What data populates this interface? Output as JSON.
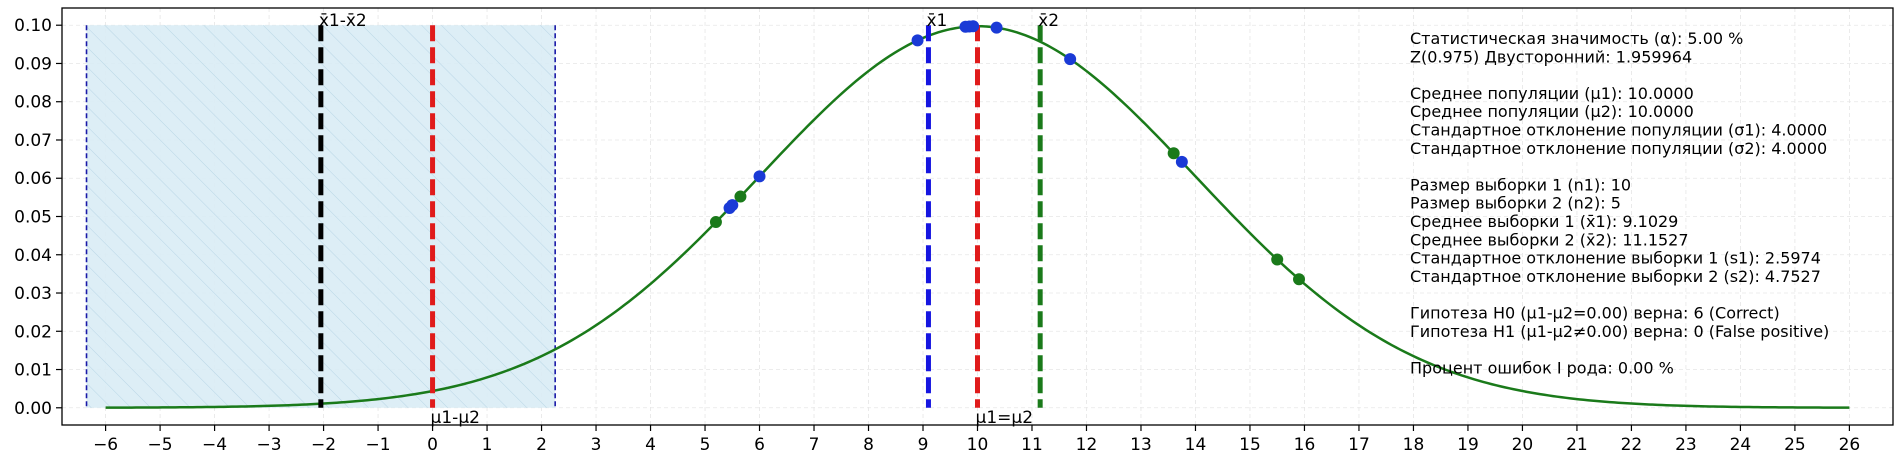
{
  "chart_data": {
    "type": "line",
    "xlim": [
      -6.8,
      26.8
    ],
    "ylim": [
      -0.0045,
      0.1045
    ],
    "x_ticks": [
      -6,
      -5,
      -4,
      -3,
      -2,
      -1,
      0,
      1,
      2,
      3,
      4,
      5,
      6,
      7,
      8,
      9,
      10,
      11,
      12,
      13,
      14,
      15,
      16,
      17,
      18,
      19,
      20,
      21,
      22,
      23,
      24,
      25,
      26
    ],
    "y_ticks": [
      0.0,
      0.01,
      0.02,
      0.03,
      0.04,
      0.05,
      0.06,
      0.07,
      0.08,
      0.09,
      0.1
    ],
    "y_tick_format": 2,
    "grid": true,
    "curve": {
      "mean": 10.0,
      "sd": 4.0,
      "x_range": [
        -6,
        26
      ],
      "color": "#1a7a1a"
    },
    "acceptance_region": {
      "x": [
        -6.35,
        2.25
      ],
      "y_top": 0.1,
      "fill": "#d9ecf5",
      "edge": "#1a1aa8"
    },
    "vertical_lines": [
      {
        "x": -2.05,
        "color": "#000000",
        "label": "x̄1-x̄2",
        "label_pos": "top"
      },
      {
        "x": 0.0,
        "color": "#e01b1b",
        "label": "μ1-μ2",
        "label_pos": "bottom"
      },
      {
        "x": 9.1,
        "color": "#1515e0",
        "label": "x̄1",
        "label_pos": "top"
      },
      {
        "x": 10.0,
        "color": "#e01b1b",
        "label": "μ1=μ2",
        "label_pos": "bottom"
      },
      {
        "x": 11.15,
        "color": "#1a7a1a",
        "label": "x̄2",
        "label_pos": "top"
      }
    ],
    "sample1_points": [
      5.45,
      5.5,
      6.0,
      8.9,
      9.78,
      9.85,
      9.92,
      10.35,
      11.7,
      13.75
    ],
    "sample2_points": [
      5.2,
      5.65,
      13.6,
      15.5,
      15.9
    ],
    "sample1_color": "#1a3ad6",
    "sample2_color": "#1a7a1a"
  },
  "info_lines": [
    "Статистическая значимость (α): 5.00 %",
    "Z(0.975) Двусторонний: 1.959964",
    "",
    "Среднее популяции (μ1): 10.0000",
    "Среднее популяции (μ2): 10.0000",
    "Стандартное отклонение популяции (σ1): 4.0000",
    "Стандартное отклонение популяции (σ2): 4.0000",
    "",
    "Размер выборки 1 (n1): 10",
    "Размер выборки 2 (n2): 5",
    "Среднее выборки 1 (x̄1): 9.1029",
    "Среднее выборки 2 (x̄2): 11.1527",
    "Стандартное отклонение выборки 1 (s1): 2.5974",
    "Стандартное отклонение выборки 2 (s2): 4.7527",
    "",
    "Гипотеза H0 (μ1-μ2=0.00) верна: 6 (Correct)",
    "Гипотеза H1 (μ1-μ2≠0.00) верна: 0 (False positive)",
    "",
    "Процент ошибок I рода: 0.00 %"
  ]
}
